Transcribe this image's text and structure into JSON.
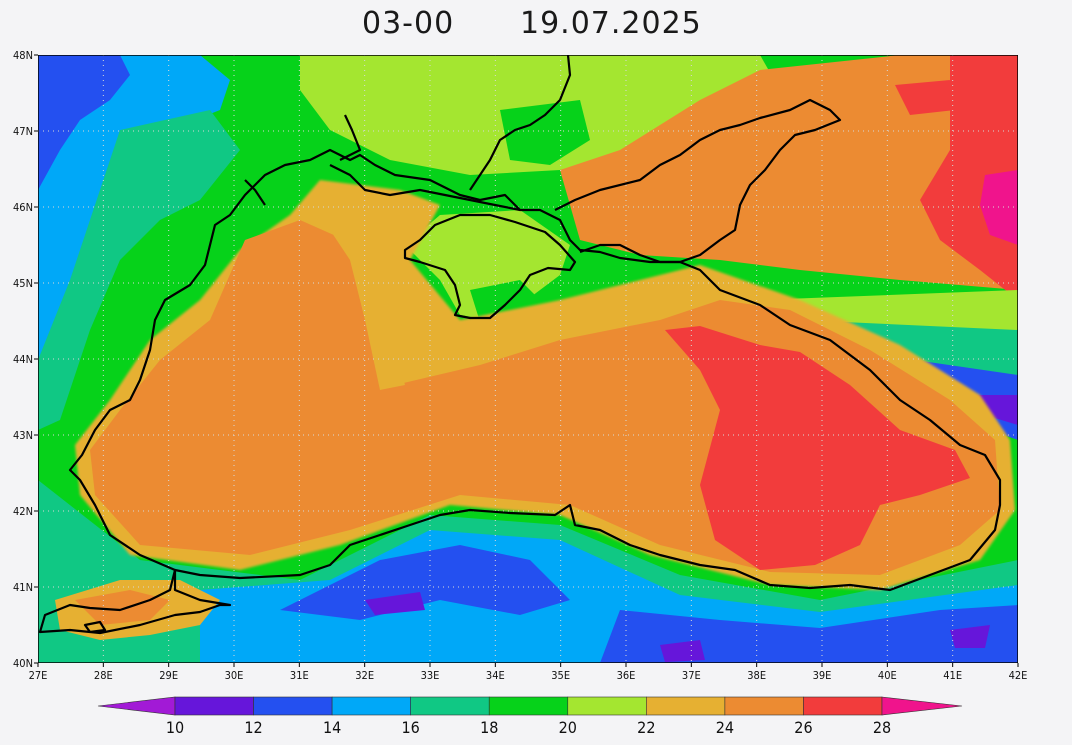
{
  "title": {
    "time": "03-00",
    "date": "19.07.2025"
  },
  "map": {
    "lat_ticks": [
      "48N",
      "47N",
      "46N",
      "45N",
      "44N",
      "43N",
      "42N",
      "41N",
      "40N"
    ],
    "lon_ticks": [
      "27E",
      "28E",
      "29E",
      "30E",
      "31E",
      "32E",
      "33E",
      "34E",
      "35E",
      "36E",
      "37E",
      "38E",
      "39E",
      "40E",
      "41E",
      "42E"
    ],
    "lat_range": [
      40,
      48
    ],
    "lon_range": [
      27,
      42
    ],
    "grid": "dotted"
  },
  "colorbar": {
    "labels": [
      "10",
      "12",
      "14",
      "16",
      "18",
      "20",
      "22",
      "24",
      "26",
      "28"
    ],
    "colors": [
      "#a21ad6",
      "#6616da",
      "#2450f0",
      "#00a8f8",
      "#10c884",
      "#06d21a",
      "#a4e630",
      "#e6b032",
      "#ec8b32",
      "#f23c3c",
      "#f0148c"
    ]
  }
}
